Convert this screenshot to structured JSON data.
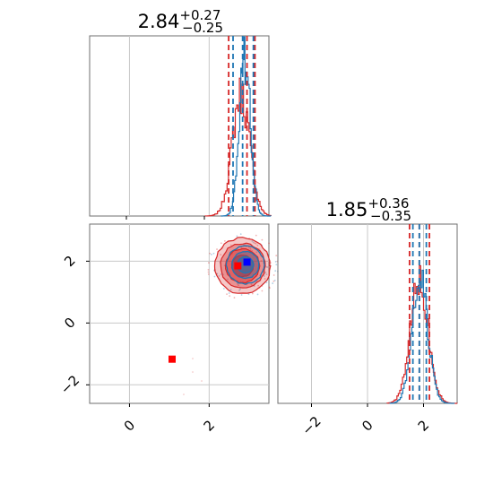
{
  "chart_data": {
    "type": "corner",
    "colors": {
      "samples_a": "#d62728",
      "samples_b": "#1f77b4",
      "truth_a": "#ff0000",
      "truth_b": "#0000ff"
    },
    "panels": [
      {
        "id": "param1_hist",
        "type": "histogram",
        "title_value": "2.84",
        "title_plus": "+0.27",
        "title_minus": "−0.25",
        "xlim": [
          -1,
          3.5
        ],
        "grid_x": [
          0,
          2
        ],
        "series": [
          {
            "name": "",
            "color": "#d62728",
            "lines": [
              2.49,
              2.95,
              3.15
            ]
          },
          {
            "name": "",
            "color": "#1f77b4",
            "lines": [
              2.6,
              2.84,
              3.11
            ]
          }
        ]
      },
      {
        "id": "param2_hist",
        "type": "histogram",
        "title_value": "1.85",
        "title_plus": "+0.36",
        "title_minus": "−0.35",
        "xlim": [
          -3.2,
          3.2
        ],
        "xticks": [
          "−2",
          "0",
          "2"
        ],
        "xtick_values": [
          -2,
          0,
          2
        ],
        "series": [
          {
            "name": "",
            "color": "#d62728",
            "lines": [
              1.5,
              1.85,
              2.21
            ]
          },
          {
            "name": "",
            "color": "#1f77b4",
            "lines": [
              1.62,
              1.85,
              2.1
            ]
          }
        ]
      },
      {
        "id": "joint",
        "type": "contour",
        "xlim": [
          -1,
          3.5
        ],
        "ylim": [
          -2.6,
          3.2
        ],
        "xticks": [
          "0",
          "2"
        ],
        "xtick_values": [
          0,
          2
        ],
        "yticks": [
          "−2",
          "0",
          "2"
        ],
        "ytick_values": [
          -2,
          0,
          2
        ],
        "center": [
          2.84,
          1.85
        ],
        "truth_points": [
          {
            "x": 1.07,
            "y": -1.17,
            "color": "#ff0000"
          },
          {
            "x": 2.72,
            "y": 1.85,
            "color": "#ff0000"
          },
          {
            "x": 2.95,
            "y": 1.97,
            "color": "#0000ff"
          }
        ]
      }
    ]
  }
}
